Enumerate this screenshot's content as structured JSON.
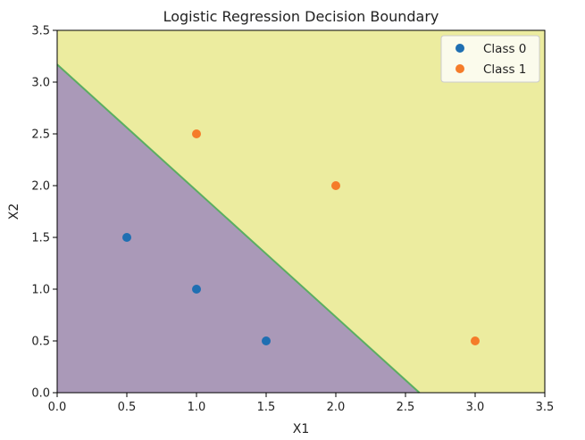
{
  "chart_data": {
    "type": "scatter",
    "title": "Logistic Regression Decision Boundary",
    "xlabel": "X1",
    "ylabel": "X2",
    "xlim": [
      0,
      3.5
    ],
    "ylim": [
      0,
      3.5
    ],
    "xticks": [
      "0.0",
      "0.5",
      "1.0",
      "1.5",
      "2.0",
      "2.5",
      "3.0",
      "3.5"
    ],
    "yticks": [
      "0.0",
      "0.5",
      "1.0",
      "1.5",
      "2.0",
      "2.5",
      "3.0",
      "3.5"
    ],
    "grid": false,
    "legend_position": "top-right",
    "decision_boundary": {
      "points": [
        [
          0,
          3.17
        ],
        [
          2.6,
          0
        ]
      ],
      "region_below_color": "#aa99b8",
      "region_above_color": "#ecec9f",
      "line_color": "#5aae61"
    },
    "series": [
      {
        "name": "Class 0",
        "color": "#1f6fb2",
        "points": [
          [
            0.5,
            1.5
          ],
          [
            1.0,
            1.0
          ],
          [
            1.5,
            0.5
          ]
        ]
      },
      {
        "name": "Class 1",
        "color": "#f57c2a",
        "points": [
          [
            1.0,
            2.5
          ],
          [
            2.0,
            2.0
          ],
          [
            3.0,
            0.5
          ]
        ]
      }
    ]
  }
}
